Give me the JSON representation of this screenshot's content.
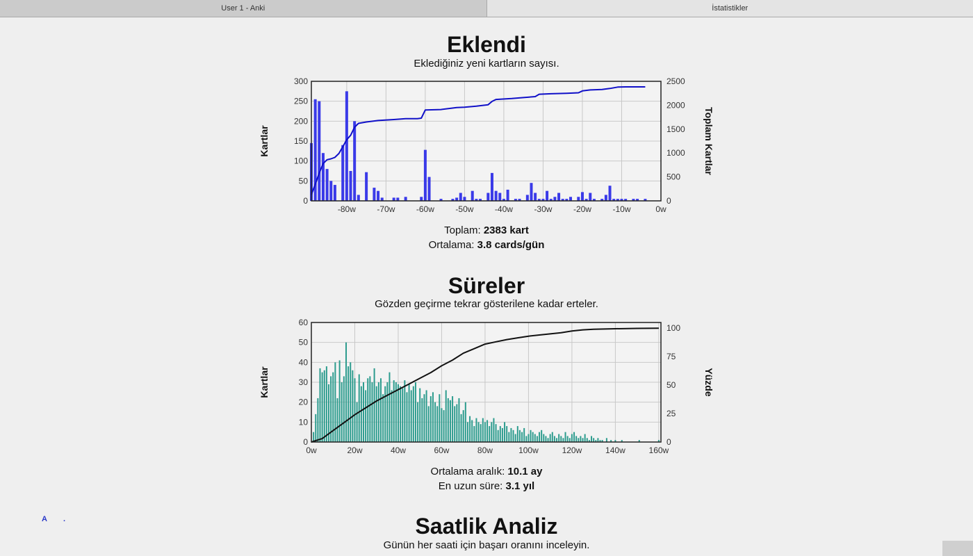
{
  "tabs": [
    {
      "label": "User 1 - Anki",
      "active": false
    },
    {
      "label": "İstatistikler",
      "active": true
    }
  ],
  "added": {
    "title": "Eklendi",
    "subtitle": "Eklediğiniz yeni kartların sayısı.",
    "total_label": "Toplam:",
    "total_value": "2383 kart",
    "avg_label": "Ortalama:",
    "avg_value": "3.8 cards/gün"
  },
  "intervals": {
    "title": "Süreler",
    "subtitle": "Gözden geçirme tekrar gösterilene kadar erteler.",
    "avg_label": "Ortalama aralık:",
    "avg_value": "10.1 ay",
    "longest_label": "En uzun süre:",
    "longest_value": "3.1 yıl"
  },
  "hourly": {
    "title": "Saatlik Analiz",
    "subtitle": "Günün her saati için başarı oranını inceleyin."
  },
  "stray_marks": {
    "a": "A",
    "dot": "."
  },
  "colors": {
    "added_bar": "#3a3ae8",
    "added_line": "#1010c8",
    "intervals_bar": "#2d9c8e",
    "intervals_line": "#111111",
    "grid": "#c8c8c8",
    "plot_bg": "#f3f3f3"
  },
  "chart_data": [
    {
      "type": "bar",
      "xlabel": "",
      "ylabel": "Kartlar",
      "y2label": "Toplam Kartlar",
      "xlim": [
        -89,
        0
      ],
      "ylim": [
        0,
        300
      ],
      "y2lim": [
        0,
        2500
      ],
      "xticks": [
        -80,
        -70,
        -60,
        -50,
        -40,
        -30,
        -20,
        -10,
        0
      ],
      "xtick_labels": [
        "-80w",
        "-70w",
        "-60w",
        "-50w",
        "-40w",
        "-30w",
        "-20w",
        "-10w",
        "0w"
      ],
      "yticks": [
        0,
        50,
        100,
        150,
        200,
        250,
        300
      ],
      "y2ticks": [
        0,
        500,
        1000,
        1500,
        2000,
        2500
      ],
      "grid": true,
      "series": [
        {
          "kind": "bar",
          "x": [
            -89,
            -88,
            -87,
            -86,
            -85,
            -84,
            -83,
            -81,
            -80,
            -79,
            -78,
            -77,
            -75,
            -73,
            -72,
            -71,
            -68,
            -67,
            -65,
            -61,
            -60,
            -59,
            -56,
            -53,
            -52,
            -51,
            -50,
            -48,
            -47,
            -46,
            -44,
            -43,
            -42,
            -41,
            -40,
            -39,
            -37,
            -36,
            -34,
            -33,
            -32,
            -31,
            -30,
            -29,
            -28,
            -27,
            -26,
            -25,
            -24,
            -23,
            -21,
            -20,
            -19,
            -18,
            -17,
            -15,
            -14,
            -13,
            -12,
            -11,
            -10,
            -9,
            -7,
            -6,
            -4
          ],
          "values": [
            145,
            255,
            250,
            120,
            80,
            50,
            40,
            140,
            275,
            75,
            200,
            15,
            72,
            33,
            25,
            8,
            8,
            8,
            10,
            10,
            128,
            60,
            5,
            5,
            8,
            20,
            10,
            25,
            5,
            5,
            20,
            70,
            25,
            20,
            5,
            28,
            5,
            5,
            15,
            45,
            20,
            5,
            5,
            25,
            5,
            10,
            20,
            5,
            5,
            10,
            10,
            22,
            5,
            20,
            5,
            5,
            15,
            38,
            5,
            5,
            5,
            5,
            5,
            5,
            5
          ]
        },
        {
          "kind": "line",
          "axis": "right",
          "x": [
            -89,
            -88,
            -87,
            -86,
            -85,
            -84,
            -83,
            -82,
            -81,
            -80,
            -79,
            -78,
            -77,
            -75,
            -72,
            -68,
            -65,
            -62,
            -61,
            -60,
            -56,
            -52,
            -50,
            -47,
            -44,
            -43,
            -42,
            -38,
            -35,
            -32,
            -31,
            -28,
            -24,
            -21,
            -20,
            -18,
            -15,
            -13,
            -11,
            -9,
            -7,
            -5,
            -4
          ],
          "values": [
            130,
            350,
            580,
            780,
            860,
            880,
            910,
            990,
            1130,
            1280,
            1370,
            1540,
            1620,
            1650,
            1680,
            1700,
            1720,
            1720,
            1730,
            1900,
            1910,
            1950,
            1960,
            1980,
            2010,
            2080,
            2120,
            2140,
            2160,
            2180,
            2230,
            2240,
            2250,
            2260,
            2300,
            2320,
            2330,
            2350,
            2380,
            2383,
            2383,
            2383,
            2383
          ]
        }
      ]
    },
    {
      "type": "bar",
      "xlabel": "",
      "ylabel": "Kartlar",
      "y2label": "Yüzde",
      "xlim": [
        0,
        161
      ],
      "ylim": [
        0,
        60
      ],
      "y2lim": [
        0,
        105
      ],
      "xticks": [
        0,
        20,
        40,
        60,
        80,
        100,
        120,
        140,
        160
      ],
      "xtick_labels": [
        "0w",
        "20w",
        "40w",
        "60w",
        "80w",
        "100w",
        "120w",
        "140w",
        "160w"
      ],
      "yticks": [
        0,
        10,
        20,
        30,
        40,
        50,
        60
      ],
      "y2ticks": [
        0,
        25,
        50,
        75,
        100
      ],
      "grid": true,
      "series": [
        {
          "kind": "bar",
          "x": [
            1,
            2,
            3,
            4,
            5,
            6,
            7,
            8,
            9,
            10,
            11,
            12,
            13,
            14,
            15,
            16,
            17,
            18,
            19,
            20,
            21,
            22,
            23,
            24,
            25,
            26,
            27,
            28,
            29,
            30,
            31,
            32,
            33,
            34,
            35,
            36,
            37,
            38,
            39,
            40,
            41,
            42,
            43,
            44,
            45,
            46,
            47,
            48,
            49,
            50,
            51,
            52,
            53,
            54,
            55,
            56,
            57,
            58,
            59,
            60,
            61,
            62,
            63,
            64,
            65,
            66,
            67,
            68,
            69,
            70,
            71,
            72,
            73,
            74,
            75,
            76,
            77,
            78,
            79,
            80,
            81,
            82,
            83,
            84,
            85,
            86,
            87,
            88,
            89,
            90,
            91,
            92,
            93,
            94,
            95,
            96,
            97,
            98,
            99,
            100,
            101,
            102,
            103,
            104,
            105,
            106,
            107,
            108,
            109,
            110,
            111,
            112,
            113,
            114,
            115,
            116,
            117,
            118,
            119,
            120,
            121,
            122,
            123,
            124,
            125,
            126,
            127,
            128,
            129,
            130,
            131,
            132,
            133,
            134,
            136,
            138,
            140,
            143,
            151,
            160
          ],
          "values": [
            5,
            14,
            22,
            37,
            35,
            36,
            38,
            29,
            33,
            35,
            40,
            22,
            41,
            30,
            33,
            50,
            38,
            40,
            36,
            32,
            20,
            34,
            28,
            30,
            26,
            32,
            33,
            30,
            37,
            28,
            30,
            32,
            24,
            28,
            30,
            35,
            26,
            31,
            30,
            29,
            28,
            27,
            31,
            25,
            29,
            26,
            28,
            30,
            20,
            27,
            22,
            24,
            26,
            18,
            23,
            25,
            20,
            18,
            24,
            17,
            16,
            26,
            22,
            21,
            23,
            18,
            19,
            22,
            14,
            16,
            20,
            10,
            13,
            11,
            8,
            12,
            10,
            9,
            12,
            10,
            11,
            8,
            10,
            12,
            9,
            6,
            8,
            7,
            10,
            8,
            5,
            7,
            6,
            4,
            8,
            6,
            5,
            7,
            3,
            4,
            6,
            5,
            4,
            3,
            5,
            6,
            4,
            3,
            2,
            4,
            5,
            3,
            2,
            4,
            3,
            2,
            5,
            3,
            2,
            4,
            5,
            3,
            2,
            3,
            2,
            4,
            2,
            1,
            3,
            2,
            1,
            2,
            1,
            1,
            2,
            1,
            1,
            1,
            1,
            1
          ]
        },
        {
          "kind": "line",
          "axis": "right",
          "x": [
            0,
            5,
            10,
            15,
            20,
            25,
            30,
            35,
            40,
            45,
            50,
            55,
            60,
            65,
            70,
            75,
            80,
            85,
            90,
            95,
            100,
            105,
            110,
            115,
            120,
            125,
            130,
            140,
            150,
            160
          ],
          "values": [
            0,
            3,
            10,
            17,
            24,
            30,
            36,
            41,
            46,
            51,
            56,
            61,
            67,
            72,
            78,
            82,
            86,
            88,
            90,
            91.5,
            93,
            94,
            95,
            96,
            97.5,
            98.5,
            99,
            99.5,
            99.8,
            100
          ]
        }
      ]
    }
  ]
}
